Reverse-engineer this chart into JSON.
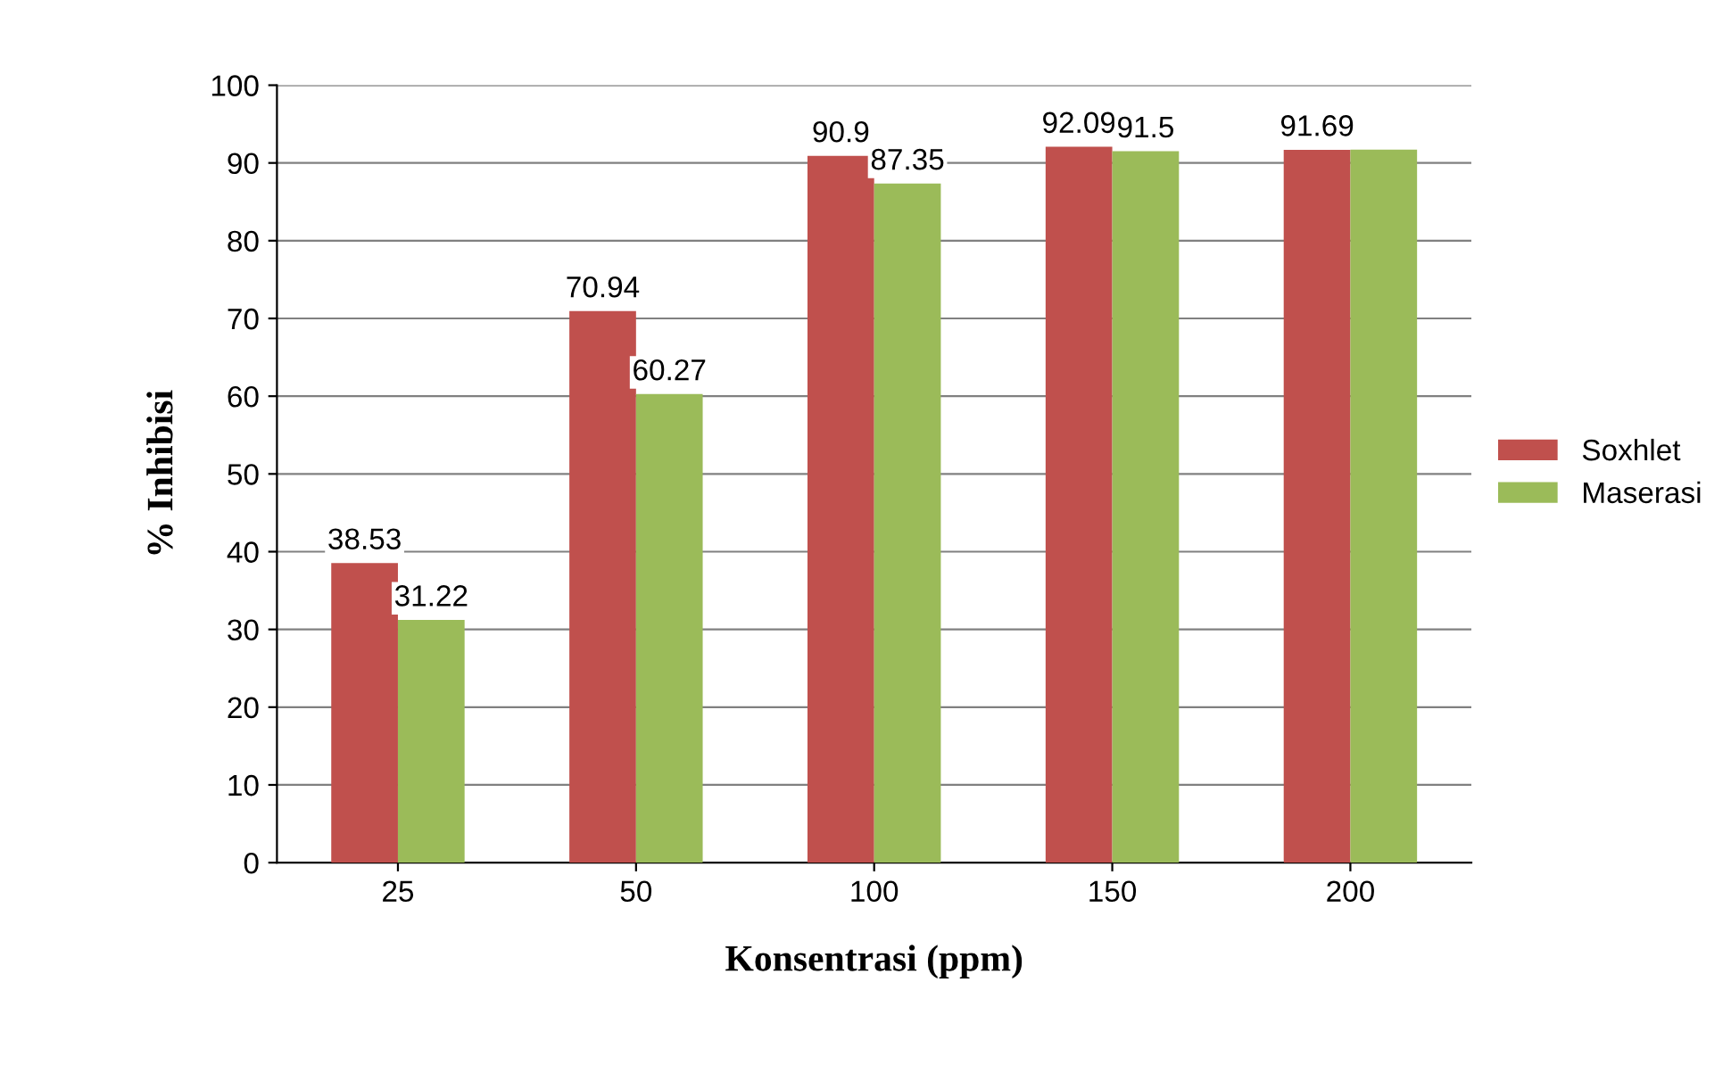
{
  "chart_data": {
    "type": "bar",
    "xlabel": "Konsentrasi (ppm)",
    "ylabel": "% Inhibisi",
    "categories": [
      "25",
      "50",
      "100",
      "150",
      "200"
    ],
    "series": [
      {
        "name": "Soxhlet",
        "color": "#c0504d",
        "values": [
          38.53,
          70.94,
          90.9,
          92.09,
          91.69
        ],
        "value_labels": [
          "38.53",
          "70.94",
          "90.9",
          "92.09",
          "91.69"
        ]
      },
      {
        "name": "Maserasi",
        "color": "#9bbb59",
        "values": [
          31.22,
          60.27,
          87.35,
          91.5,
          91.7
        ],
        "value_labels": [
          "31.22",
          "60.27",
          "87.35",
          "91.5",
          null
        ]
      }
    ],
    "ylim": [
      0,
      100
    ],
    "yticks": [
      0,
      10,
      20,
      30,
      40,
      50,
      60,
      70,
      80,
      90,
      100
    ],
    "grid": "y",
    "legend": "right"
  }
}
